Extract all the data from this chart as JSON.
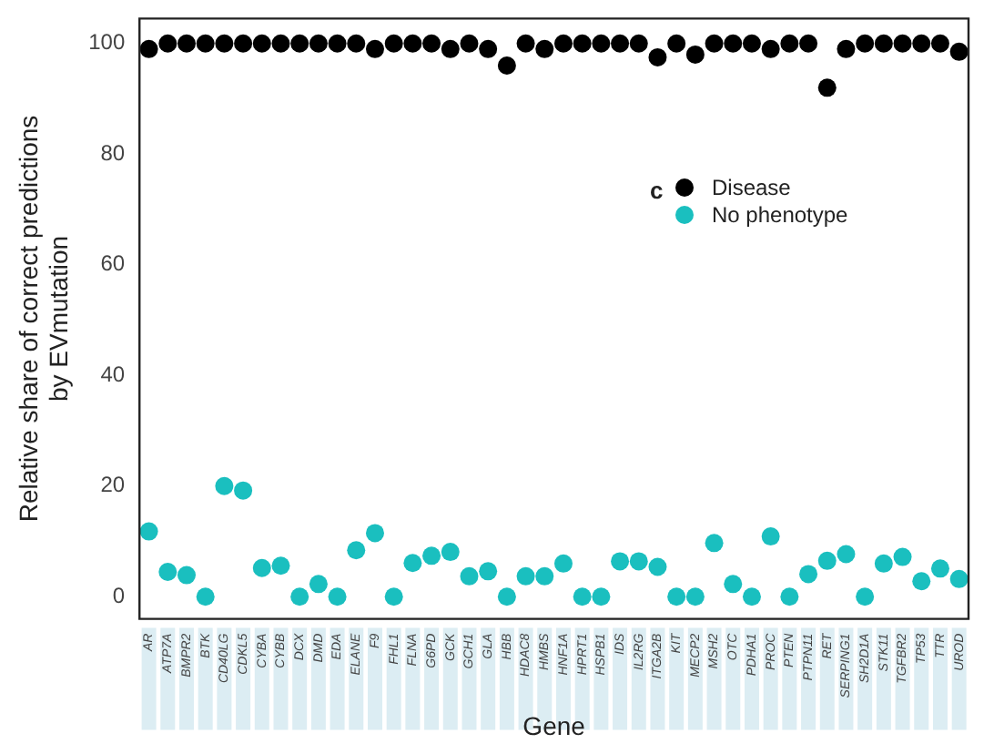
{
  "chart_data": {
    "type": "scatter",
    "xlabel": "Gene",
    "ylabel": "Relative share of correct predictions\nby EVmutation",
    "legend_title": "c",
    "categories": [
      "AR",
      "ATP7A",
      "BMPR2",
      "BTK",
      "CD40LG",
      "CDKL5",
      "CYBA",
      "CYBB",
      "DCX",
      "DMD",
      "EDA",
      "ELANE",
      "F9",
      "FHL1",
      "FLNA",
      "G6PD",
      "GCK",
      "GCH1",
      "GLA",
      "HBB",
      "HDAC8",
      "HMBS",
      "HNF1A",
      "HPRT1",
      "HSPB1",
      "IDS",
      "IL2RG",
      "ITGA2B",
      "KIT",
      "MECP2",
      "MSH2",
      "OTC",
      "PDHA1",
      "PROC",
      "PTEN",
      "PTPN11",
      "RET",
      "SERPING1",
      "SH2D1A",
      "STK11",
      "TGFBR2",
      "TP53",
      "TTR",
      "UROD"
    ],
    "series": [
      {
        "name": "Disease",
        "color": "#000000",
        "values": [
          99,
          100,
          100,
          100,
          100,
          100,
          100,
          100,
          100,
          100,
          100,
          100,
          99,
          100,
          100,
          100,
          99,
          100,
          99,
          96,
          100,
          99,
          100,
          100,
          100,
          100,
          100,
          97.5,
          100,
          98,
          100,
          100,
          100,
          99,
          100,
          100,
          92,
          99,
          100,
          100,
          100,
          100,
          100,
          98.5
        ]
      },
      {
        "name": "No phenotype",
        "color": "#1abfbf",
        "values": [
          11.8,
          4.5,
          3.9,
          0,
          20,
          19.2,
          5.2,
          5.6,
          0,
          2.3,
          0,
          8.4,
          11.5,
          0,
          6.1,
          7.4,
          8.1,
          3.7,
          4.6,
          0,
          3.7,
          3.7,
          6,
          0,
          0,
          6.4,
          6.4,
          5.4,
          0,
          0,
          9.7,
          2.3,
          0,
          10.9,
          0,
          4.1,
          6.5,
          7.7,
          0,
          6,
          7.2,
          2.8,
          5.1,
          3.2
        ]
      }
    ],
    "ylim": [
      -4,
      104.5
    ],
    "yticks": [
      0,
      20,
      40,
      60,
      80,
      100
    ],
    "grid": false,
    "legend": "right",
    "marker": "circle"
  }
}
